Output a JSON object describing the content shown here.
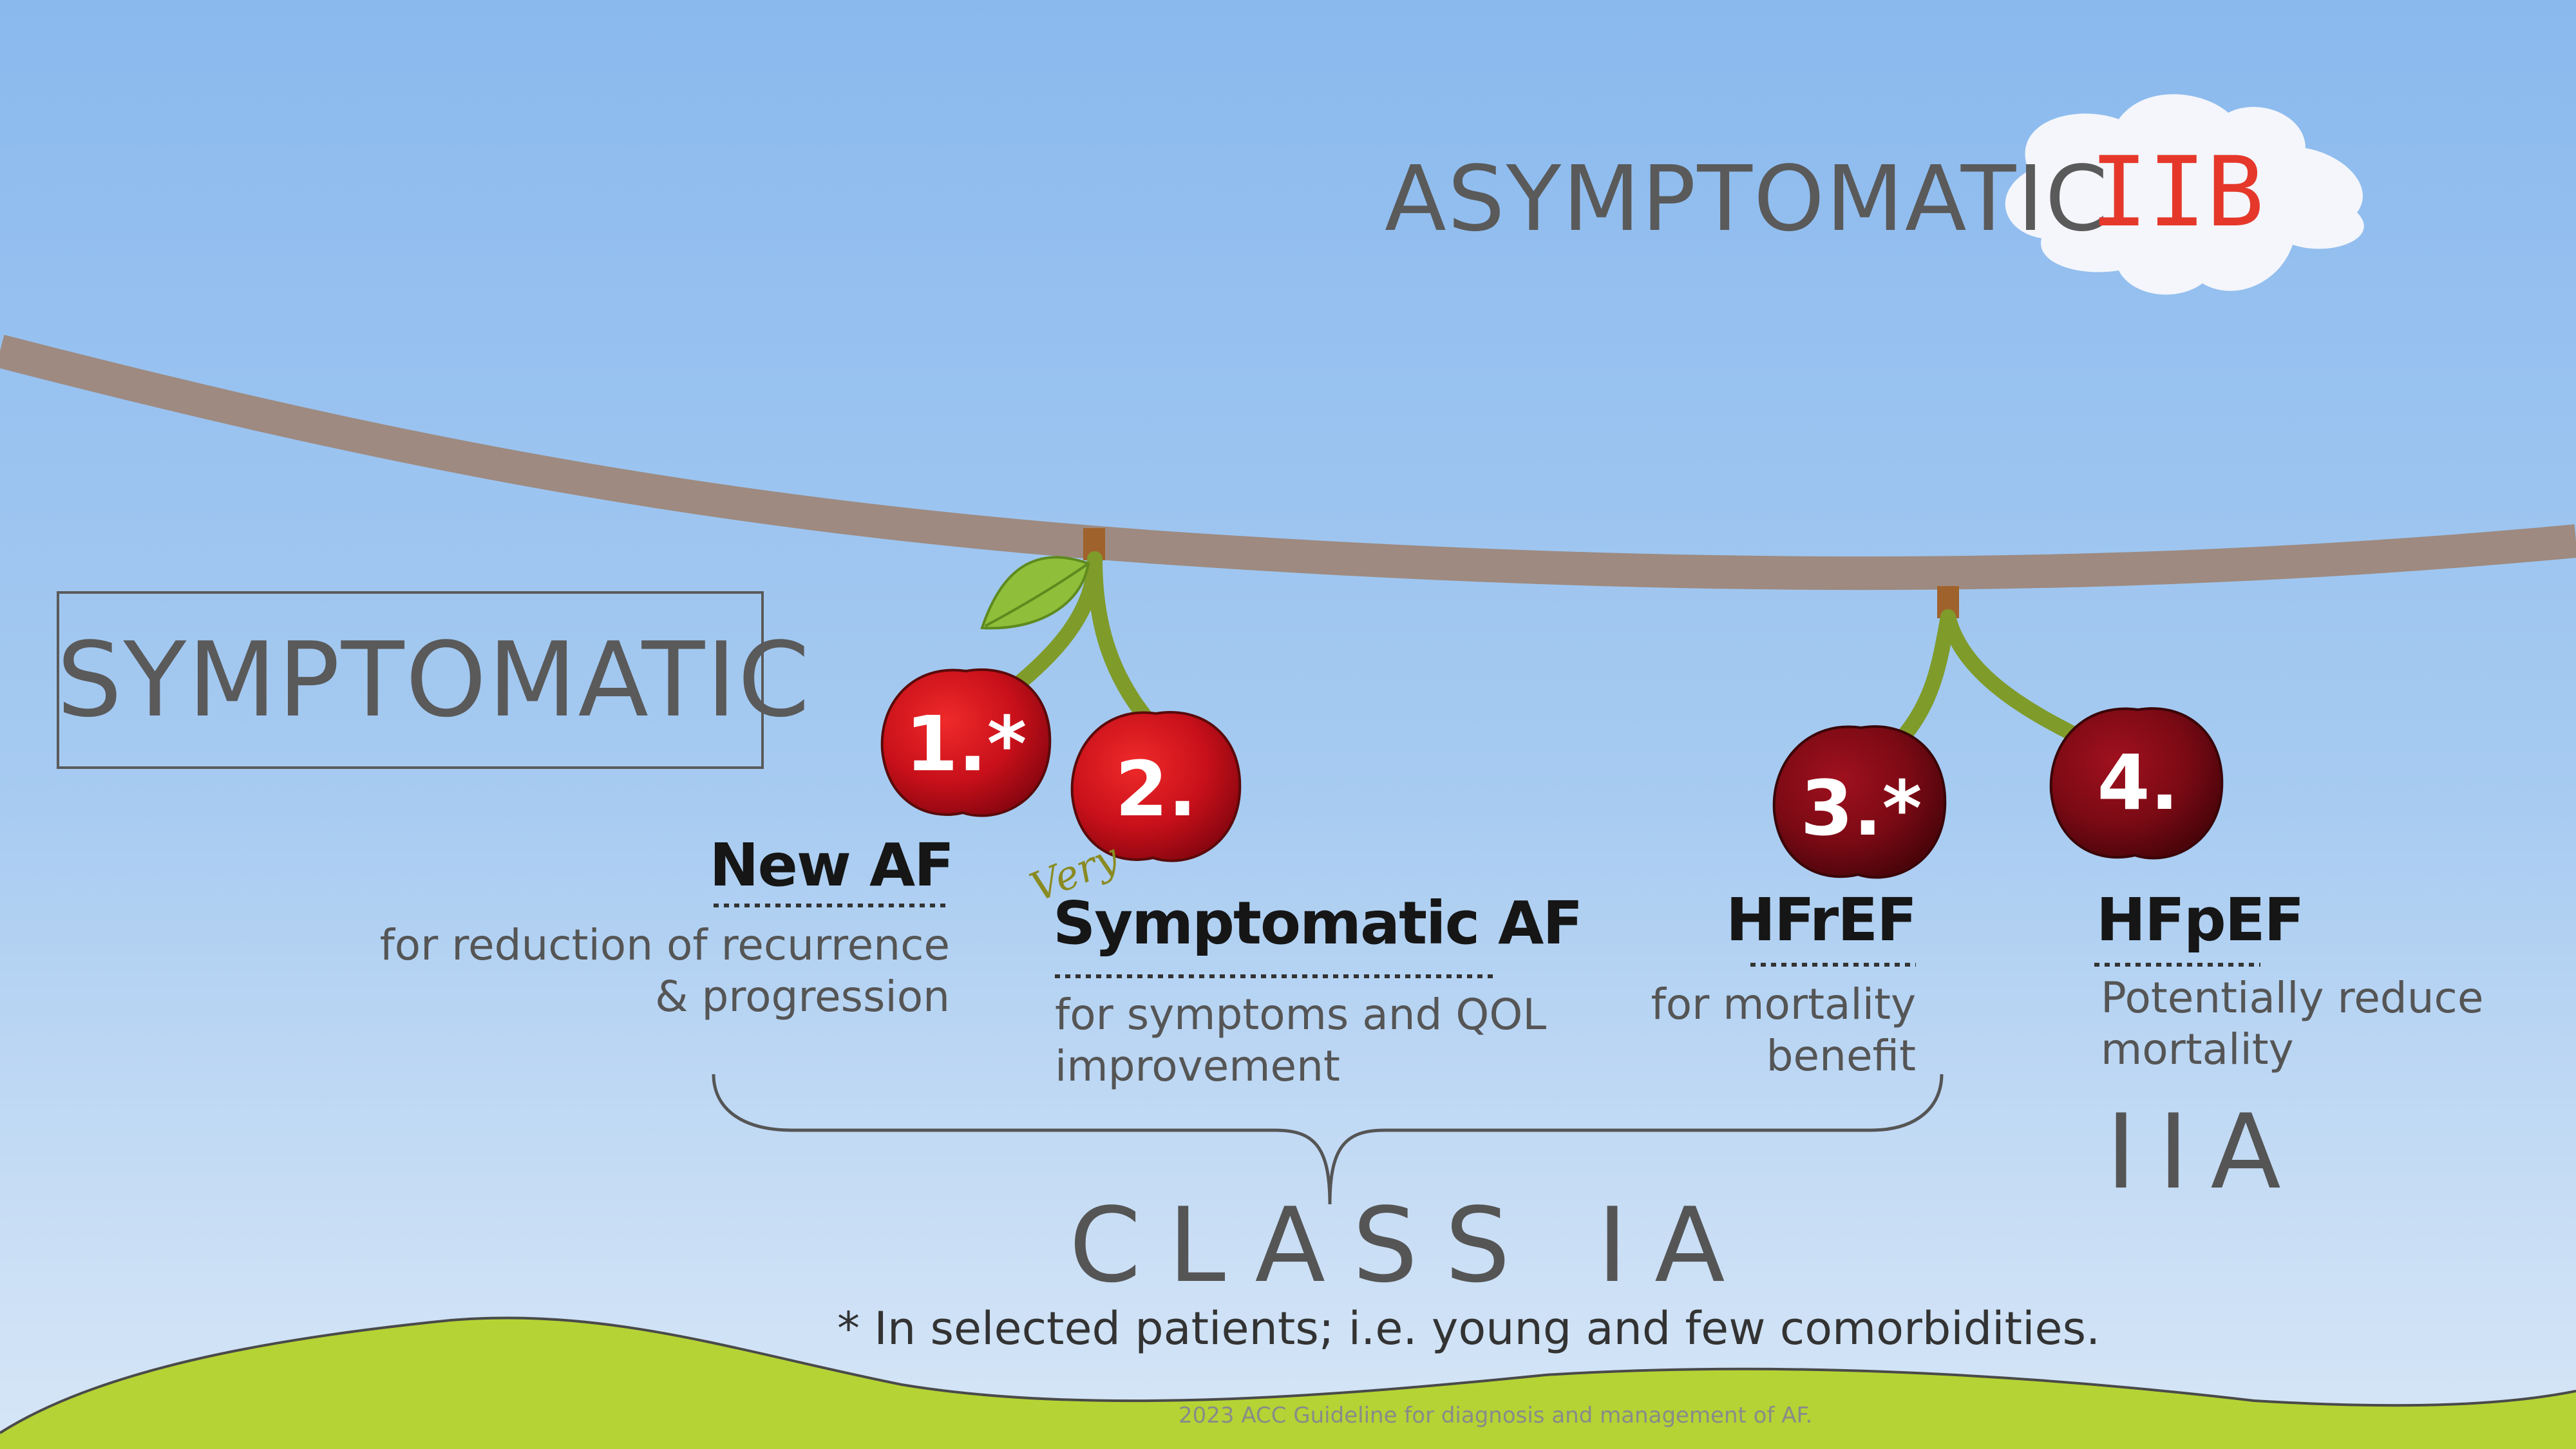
{
  "symptomatic_label": "SYMPTOMATIC",
  "asymptomatic_label": "ASYMPTOMATIC",
  "asymptomatic_class": "IIB",
  "cherries": [
    {
      "number": "1.*",
      "title": "New AF",
      "description": [
        "for reduction of recurrence",
        "& progression"
      ],
      "color": "#c8101a"
    },
    {
      "number": "2.",
      "title": "Symptomatic AF",
      "prefix": "Very",
      "description": [
        "for symptoms and QOL",
        "improvement"
      ],
      "color": "#c8101a"
    },
    {
      "number": "3.*",
      "title": "HFrEF",
      "description": [
        "for mortality",
        "benefit"
      ],
      "color": "#7a0a14"
    },
    {
      "number": "4.",
      "title": "HFpEF",
      "description": [
        "Potentially reduce",
        "mortality"
      ],
      "color": "#7a0a14"
    }
  ],
  "class_ia_label": "CLASS IA",
  "class_iia_label": "IIA",
  "footnote": "* In selected patients; i.e. young and few comorbidities.",
  "source": "2023 ACC Guideline for diagnosis and management of AF.",
  "colors": {
    "branch": "#9e8a80",
    "stem": "#7f9b2a",
    "ground": "#b5d334",
    "iib_red": "#e5382b"
  }
}
